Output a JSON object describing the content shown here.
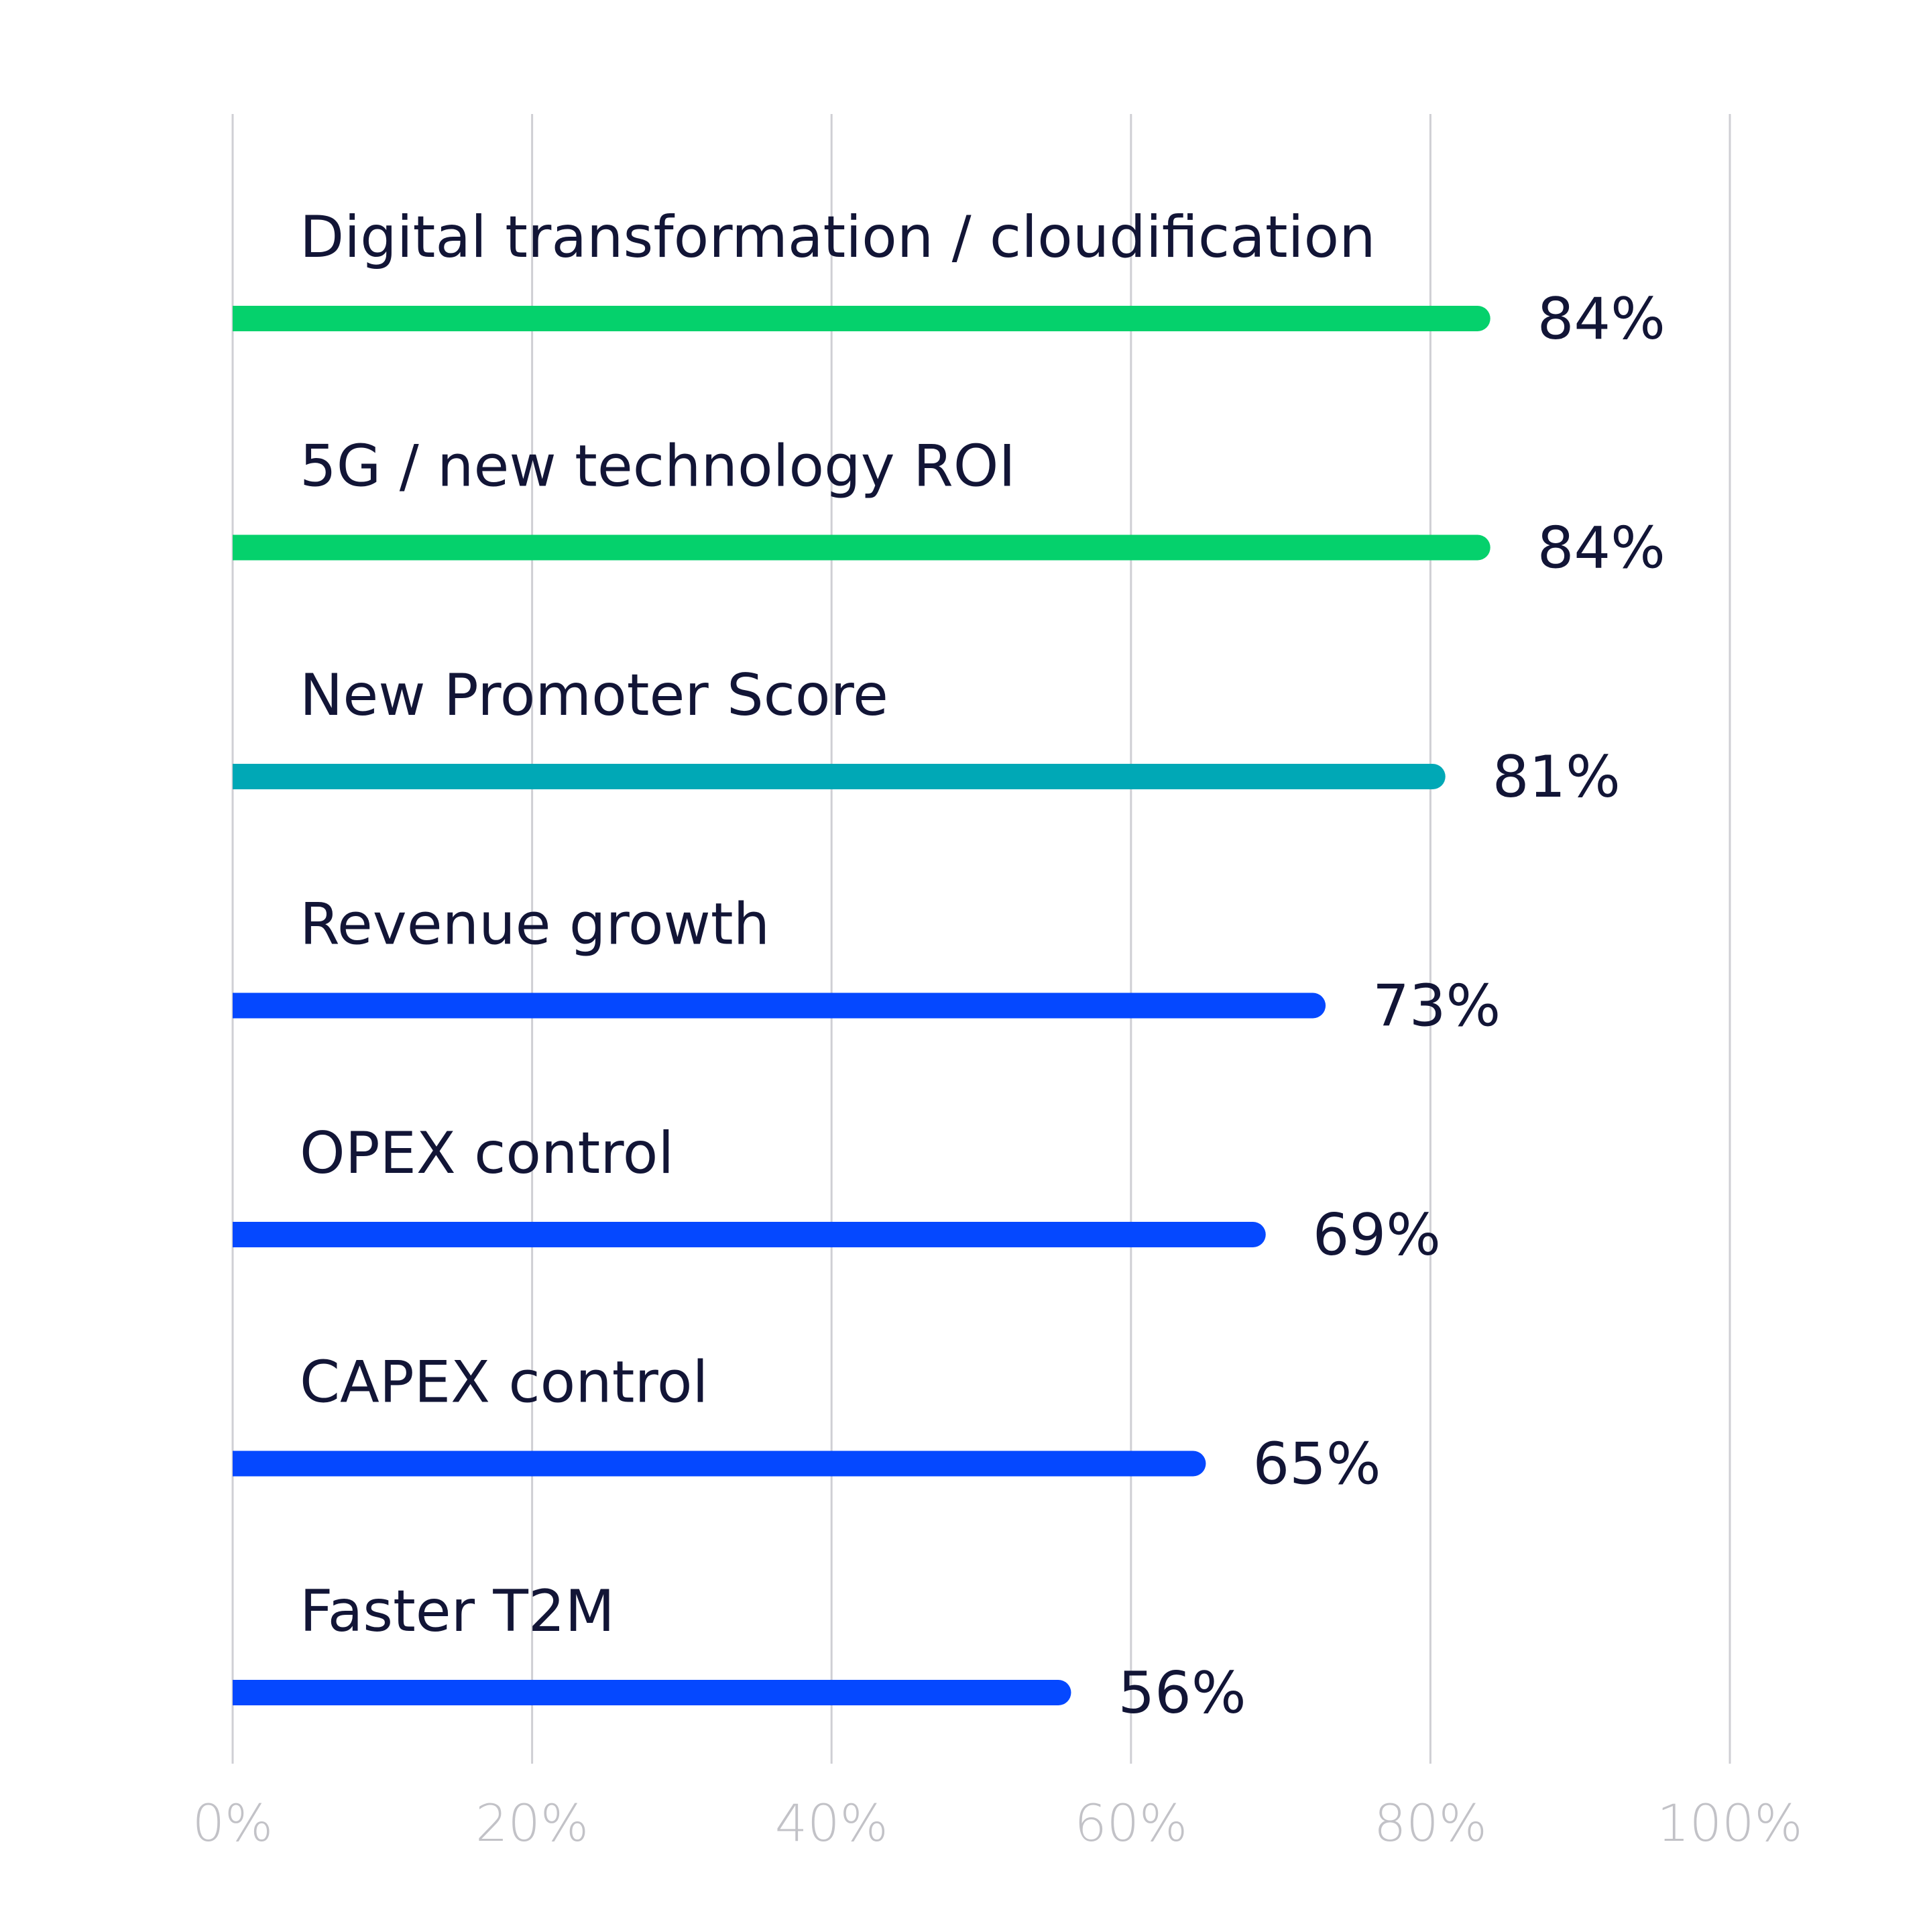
{
  "chart_data": {
    "type": "bar",
    "orientation": "horizontal",
    "categories": [
      "Digital transformation / cloudification",
      "5G / new technology ROI",
      "New Promoter Score",
      "Revenue growth",
      "OPEX control",
      "CAPEX control",
      "Faster T2M"
    ],
    "values": [
      84,
      84,
      81,
      73,
      69,
      65,
      56
    ],
    "value_labels": [
      "84%",
      "84%",
      "81%",
      "73%",
      "69%",
      "65%",
      "56%"
    ],
    "bar_colors": [
      "#05d16c",
      "#05d16c",
      "#00a8b6",
      "#0548ff",
      "#0548ff",
      "#0548ff",
      "#0548ff"
    ],
    "xlim": [
      0,
      100
    ],
    "x_ticks": [
      0,
      20,
      40,
      60,
      80,
      100
    ],
    "x_tick_labels": [
      "0%",
      "20%",
      "40%",
      "60%",
      "80%",
      "100%"
    ],
    "title": "",
    "xlabel": "",
    "ylabel": "",
    "grid": "vertical",
    "legend": "none"
  }
}
